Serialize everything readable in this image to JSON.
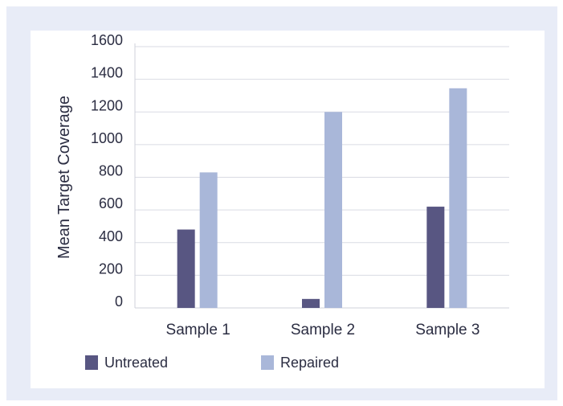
{
  "chart_data": {
    "type": "bar",
    "title": "",
    "xlabel": "",
    "ylabel": "Mean Target Coverage",
    "ylim": [
      0,
      1600
    ],
    "yticks": [
      0,
      200,
      400,
      600,
      800,
      1000,
      1200,
      1400,
      1600
    ],
    "ytick_labels": [
      "0",
      "200",
      "400",
      "600",
      "800",
      "1000",
      "1200",
      "1400",
      "1600"
    ],
    "categories": [
      "Sample 1",
      "Sample 2",
      "Sample 3"
    ],
    "series": [
      {
        "name": "Untreated",
        "values": [
          480,
          55,
          620
        ],
        "color": "#585682"
      },
      {
        "name": "Repaired",
        "values": [
          830,
          1200,
          1345
        ],
        "color": "#a9b7d9"
      }
    ],
    "grid": true,
    "legend_placement": "bottom-left"
  }
}
